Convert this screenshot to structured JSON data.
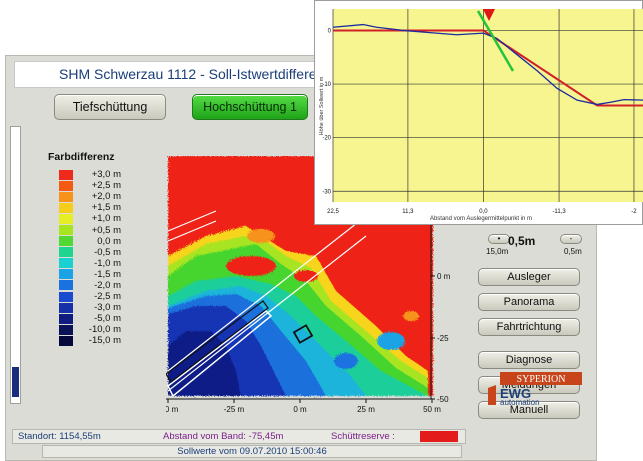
{
  "window": {
    "title": "SHM Schwerzau 1112 - Soll-Istwertdifferenz"
  },
  "mode_buttons": {
    "tief": "Tiefschüttung",
    "hoch": "Hochschüttung 1"
  },
  "legend": {
    "title": "Farbdifferenz",
    "items": [
      {
        "label": "+3,0 m",
        "color": "#ef2a1c"
      },
      {
        "label": "+2,5 m",
        "color": "#f45a14"
      },
      {
        "label": "+2,0 m",
        "color": "#f7931b"
      },
      {
        "label": "+1,5 m",
        "color": "#f7cd1b"
      },
      {
        "label": "+1,0 m",
        "color": "#e6ef25"
      },
      {
        "label": "+0,5 m",
        "color": "#a9e51f"
      },
      {
        "label": "0,0 m",
        "color": "#52d832"
      },
      {
        "label": "-0,5 m",
        "color": "#1fd48f"
      },
      {
        "label": "-1,0 m",
        "color": "#1ad1d1"
      },
      {
        "label": "-1,5 m",
        "color": "#1aa3e6"
      },
      {
        "label": "-2,0 m",
        "color": "#1a72e0"
      },
      {
        "label": "-2,5 m",
        "color": "#1a4acd"
      },
      {
        "label": "-3,0 m",
        "color": "#1630a8"
      },
      {
        "label": "-5,0 m",
        "color": "#101d80"
      },
      {
        "label": "-10,0 m",
        "color": "#0a1258"
      },
      {
        "label": "-15,0 m",
        "color": "#05083a"
      }
    ]
  },
  "heatmap": {
    "x_ticks": [
      "-50 m",
      "-25 m",
      "0 m",
      "25 m",
      "50 m"
    ],
    "y_ticks": [
      "0 m",
      "-25 m",
      "-50 m"
    ]
  },
  "status": {
    "standort": "Standort: 1154,55m",
    "abstand": "Abstand vom Band: -75,45m",
    "schuttreserve": "Schüttreserve :",
    "reserve_value": "",
    "sollwerte": "Sollwerte vom 09.07.2010 15:00:46"
  },
  "panel": {
    "step_value": "0,5m",
    "step_min": "15,0m",
    "step_max": "0,5m",
    "step_dec": "•",
    "step_inc": "-",
    "buttons": [
      "Ausleger",
      "Panorama",
      "Fahrtrichtung",
      "Diagnose",
      "Meldungen",
      "Manuell"
    ]
  },
  "logo": {
    "brand": "SYPERION",
    "company": "EWG",
    "tagline": "automation"
  },
  "profile_chart": {
    "ylabel": "Höhe über Sollwert in m",
    "xlabel": "Abstand vom Auslegermittelpunkt in m",
    "y_ticks": [
      "0",
      "-10",
      "-20",
      "-30"
    ],
    "x_ticks": [
      "22,5",
      "11,3",
      "0,0",
      "-11,3",
      "-2"
    ],
    "colors": {
      "background": "#f7f58f",
      "measured": "#1a2aa0",
      "target": "#d0202a",
      "boom": "#23c33a"
    }
  },
  "chart_data": {
    "type": "line",
    "xlabel": "Abstand vom Auslegermittelpunkt in m",
    "ylabel": "Höhe über Sollwert in m",
    "xlim": [
      22.5,
      -24
    ],
    "ylim": [
      -32,
      4
    ],
    "series": [
      {
        "name": "",
        "color": "#d0202a",
        "x": [
          22.5,
          0,
          -17,
          -24
        ],
        "y": [
          0,
          0,
          -14,
          -14
        ]
      },
      {
        "name": "",
        "color": "#1a2aa0",
        "x": [
          22.5,
          18,
          16,
          12,
          8,
          4,
          0,
          -2,
          -5,
          -8,
          -11,
          -14,
          -17,
          -19,
          -21,
          -24
        ],
        "y": [
          0.6,
          1.1,
          0.6,
          0.0,
          -0.4,
          -0.8,
          -0.5,
          -1.5,
          -4.5,
          -7.5,
          -10.8,
          -13,
          -13.8,
          -13.4,
          -12.9,
          -13.0
        ]
      }
    ]
  }
}
